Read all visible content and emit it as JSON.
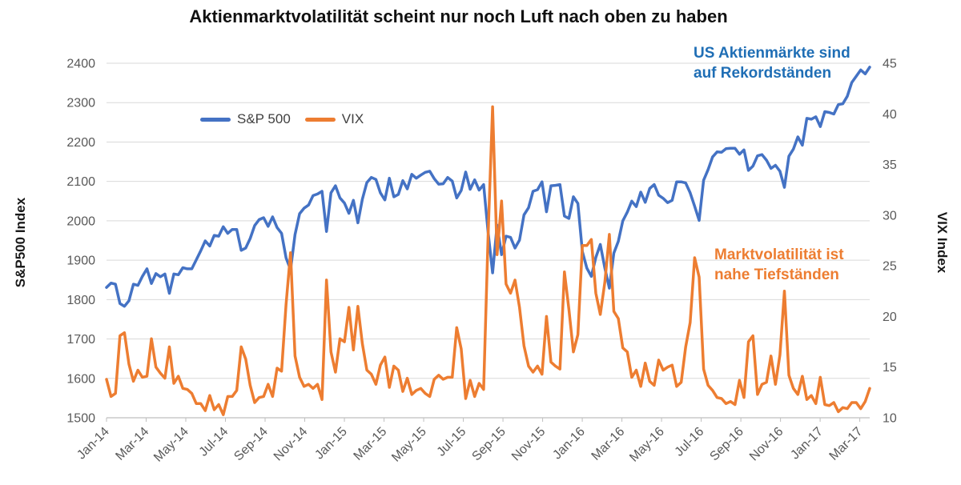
{
  "title": "Aktienmarktvolatilität scheint nur noch Luft nach oben zu haben",
  "chart_data": {
    "type": "line",
    "title": "Aktienmarktvolatilität scheint nur noch Luft nach oben zu haben",
    "grid": "horizontal",
    "legend_position": "top-inside",
    "x_tick_labels": [
      "Jan-14",
      "Mar-14",
      "May-14",
      "Jul-14",
      "Sep-14",
      "Nov-14",
      "Jan-15",
      "Mar-15",
      "May-15",
      "Jul-15",
      "Sep-15",
      "Nov-15",
      "Jan-16",
      "Mar-16",
      "May-16",
      "Jul-16",
      "Sep-16",
      "Nov-16",
      "Jan-17",
      "Mar-17"
    ],
    "x_tick_interval_months": 2,
    "x_total_months": 38.5,
    "x_start": "Jan-14",
    "x_end": "Mar-17",
    "left_axis": {
      "label": "S&P500 Index",
      "min": 1500,
      "max": 2400,
      "tick_step": 100,
      "ticks": [
        2400,
        2300,
        2200,
        2100,
        2000,
        1900,
        1800,
        1700,
        1600,
        1500
      ]
    },
    "right_axis": {
      "label": "VIX Index",
      "min": 10,
      "max": 45,
      "tick_step": 5,
      "ticks": [
        45,
        40,
        35,
        30,
        25,
        20,
        15,
        10
      ]
    },
    "colors": {
      "grid": "#D9D9D9",
      "axis": "#BFBFBF",
      "tick_text": "#595959"
    },
    "annotations": [
      {
        "position": "top-right",
        "color": "#1F6EB5",
        "text_lines": [
          "US Aktienmärkte sind",
          "auf Rekordständen"
        ]
      },
      {
        "position": "mid-right",
        "color": "#ED7D31",
        "text_lines": [
          "Marktvolatilität ist",
          "nahe Tiefständen"
        ]
      }
    ],
    "sampling_note": "weekly values estimated from plot, Jan-14 through Mar-17, incl. daily extremes",
    "series": [
      {
        "name": "S&P 500",
        "axis": "left",
        "color": "#4472C4",
        "values": [
          1831,
          1842,
          1839,
          1790,
          1783,
          1797,
          1839,
          1836,
          1859,
          1878,
          1841,
          1866,
          1858,
          1865,
          1816,
          1865,
          1863,
          1881,
          1878,
          1878,
          1901,
          1924,
          1949,
          1936,
          1963,
          1961,
          1985,
          1968,
          1978,
          1978,
          1925,
          1931,
          1955,
          1988,
          2003,
          2008,
          1986,
          2010,
          1983,
          1968,
          1906,
          1876,
          1965,
          2018,
          2032,
          2040,
          2064,
          2068,
          2075,
          1973,
          2071,
          2089,
          2058,
          2045,
          2019,
          2052,
          1995,
          2055,
          2097,
          2110,
          2105,
          2071,
          2053,
          2108,
          2061,
          2067,
          2102,
          2081,
          2118,
          2108,
          2116,
          2123,
          2126,
          2107,
          2093,
          2094,
          2110,
          2101,
          2058,
          2077,
          2124,
          2080,
          2104,
          2078,
          2092,
          1971,
          1868,
          1989,
          1914,
          1961,
          1958,
          1931,
          1951,
          2015,
          2033,
          2075,
          2079,
          2099,
          2023,
          2089,
          2090,
          2092,
          2012,
          2006,
          2061,
          2044,
          1922,
          1880,
          1859,
          1907,
          1940,
          1880,
          1829,
          1918,
          1948,
          2000,
          2022,
          2050,
          2036,
          2073,
          2047,
          2082,
          2092,
          2065,
          2057,
          2046,
          2052,
          2099,
          2099,
          2096,
          2071,
          2037,
          2001,
          2103,
          2130,
          2162,
          2175,
          2174,
          2183,
          2184,
          2184,
          2169,
          2180,
          2128,
          2139,
          2165,
          2168,
          2154,
          2133,
          2141,
          2126,
          2085,
          2164,
          2182,
          2213,
          2192,
          2260,
          2258,
          2264,
          2239,
          2277,
          2275,
          2271,
          2295,
          2297,
          2316,
          2351,
          2367,
          2383,
          2373,
          2390
        ]
      },
      {
        "name": "VIX",
        "axis": "right",
        "color": "#ED7D31",
        "values": [
          13.8,
          12.1,
          12.4,
          18.1,
          18.4,
          15.3,
          13.6,
          14.7,
          14.0,
          14.1,
          17.8,
          15.0,
          14.4,
          13.9,
          17.0,
          13.4,
          14.1,
          12.9,
          12.8,
          12.4,
          11.4,
          11.4,
          10.7,
          12.2,
          10.8,
          11.3,
          10.3,
          12.1,
          12.1,
          12.7,
          17.0,
          15.8,
          13.2,
          11.5,
          12.0,
          12.1,
          13.3,
          12.1,
          14.9,
          14.6,
          21.2,
          26.3,
          16.1,
          14.0,
          13.1,
          13.3,
          12.9,
          13.3,
          11.8,
          23.6,
          16.5,
          14.5,
          17.8,
          17.5,
          20.9,
          16.7,
          21.0,
          17.3,
          14.7,
          14.3,
          13.3,
          15.2,
          16.0,
          13.0,
          15.1,
          14.7,
          12.6,
          13.9,
          12.3,
          12.7,
          12.9,
          12.4,
          12.1,
          13.8,
          14.2,
          13.8,
          14.0,
          14.0,
          18.9,
          16.8,
          11.9,
          13.7,
          12.1,
          13.4,
          12.8,
          28.0,
          40.7,
          26.1,
          31.4,
          23.2,
          22.3,
          23.6,
          20.9,
          17.1,
          15.1,
          14.5,
          15.1,
          14.3,
          20.0,
          15.5,
          15.1,
          14.8,
          24.4,
          20.7,
          16.5,
          18.2,
          27.0,
          27.0,
          27.6,
          22.3,
          20.2,
          23.4,
          28.1,
          20.5,
          19.8,
          16.9,
          16.5,
          14.0,
          14.7,
          13.1,
          15.4,
          13.6,
          13.2,
          15.7,
          14.7,
          15.0,
          15.2,
          13.1,
          13.5,
          17.0,
          19.4,
          25.8,
          23.9,
          14.8,
          13.2,
          12.7,
          12.0,
          11.9,
          11.4,
          11.6,
          11.3,
          13.7,
          12.0,
          17.5,
          18.1,
          12.3,
          13.3,
          13.5,
          16.1,
          13.3,
          16.2,
          22.5,
          14.2,
          12.9,
          12.3,
          14.1,
          11.8,
          12.2,
          11.4,
          14.0,
          11.3,
          11.2,
          11.5,
          10.6,
          11.0,
          10.9,
          11.5,
          11.5,
          10.9,
          11.6,
          12.9
        ]
      }
    ]
  }
}
